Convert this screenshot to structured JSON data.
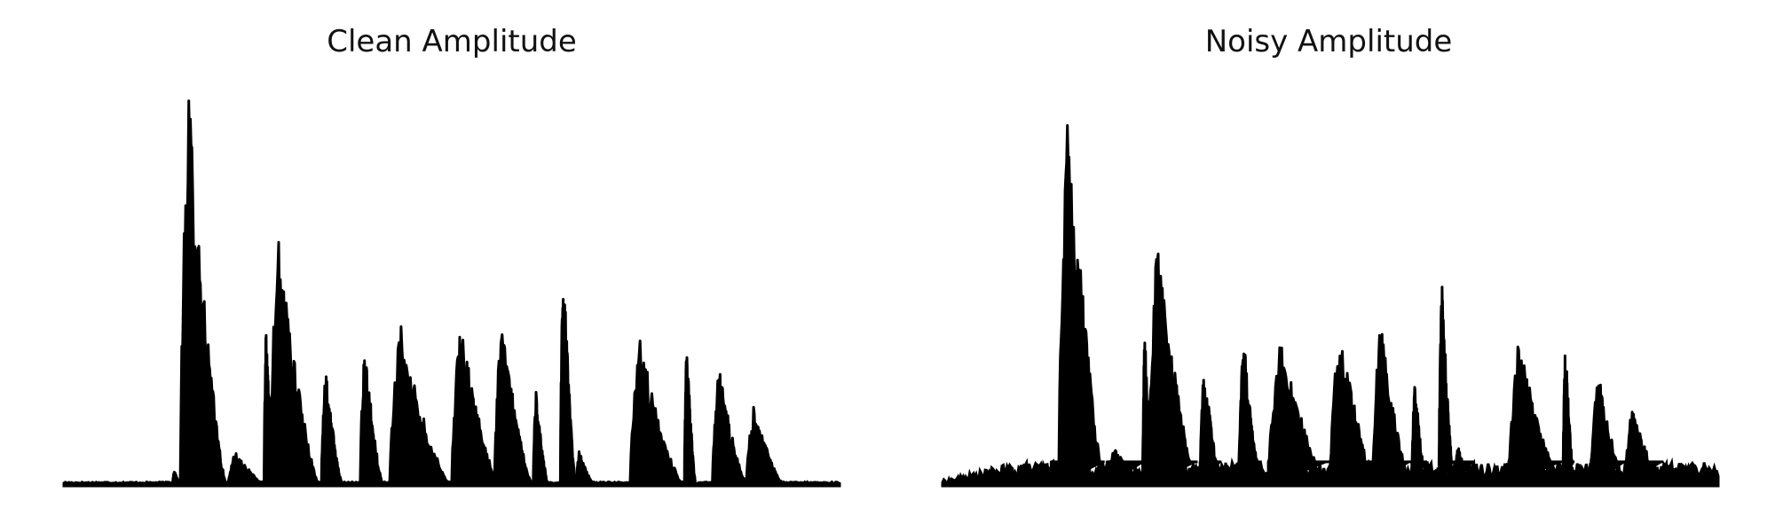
{
  "chart_data": [
    {
      "type": "area",
      "title": "Clean Amplitude",
      "xlabel": "",
      "ylabel": "",
      "grid": false,
      "axes_visible": false,
      "ylim": [
        0,
        1.0
      ],
      "color": "#000000",
      "baseline": 0.01,
      "segments": [
        {
          "start": 0.14,
          "end": 0.152,
          "peak": 0.04
        },
        {
          "start": 0.15,
          "end": 0.21,
          "peak": 1.0
        },
        {
          "start": 0.212,
          "end": 0.262,
          "peak": 0.09
        },
        {
          "start": 0.258,
          "end": 0.272,
          "peak": 0.4
        },
        {
          "start": 0.265,
          "end": 0.33,
          "peak": 0.63
        },
        {
          "start": 0.332,
          "end": 0.36,
          "peak": 0.31
        },
        {
          "start": 0.382,
          "end": 0.412,
          "peak": 0.36
        },
        {
          "start": 0.42,
          "end": 0.5,
          "peak": 0.41
        },
        {
          "start": 0.5,
          "end": 0.562,
          "peak": 0.41
        },
        {
          "start": 0.555,
          "end": 0.605,
          "peak": 0.42
        },
        {
          "start": 0.605,
          "end": 0.625,
          "peak": 0.24
        },
        {
          "start": 0.64,
          "end": 0.66,
          "peak": 0.6
        },
        {
          "start": 0.66,
          "end": 0.685,
          "peak": 0.09
        },
        {
          "start": 0.73,
          "end": 0.8,
          "peak": 0.37
        },
        {
          "start": 0.8,
          "end": 0.815,
          "peak": 0.37
        },
        {
          "start": 0.836,
          "end": 0.882,
          "peak": 0.3
        },
        {
          "start": 0.88,
          "end": 0.93,
          "peak": 0.2
        }
      ]
    },
    {
      "type": "area",
      "title": "Noisy Amplitude",
      "xlabel": "",
      "ylabel": "",
      "grid": false,
      "axes_visible": false,
      "ylim": [
        0,
        1.0
      ],
      "color": "#000000",
      "baseline": 0.03,
      "noise_floor": 0.06,
      "segments": [
        {
          "start": 0.14,
          "end": 0.152,
          "peak": 0.07
        },
        {
          "start": 0.15,
          "end": 0.21,
          "peak": 1.0
        },
        {
          "start": 0.212,
          "end": 0.262,
          "peak": 0.1
        },
        {
          "start": 0.258,
          "end": 0.272,
          "peak": 0.4
        },
        {
          "start": 0.265,
          "end": 0.33,
          "peak": 0.62
        },
        {
          "start": 0.332,
          "end": 0.36,
          "peak": 0.31
        },
        {
          "start": 0.382,
          "end": 0.412,
          "peak": 0.39
        },
        {
          "start": 0.42,
          "end": 0.5,
          "peak": 0.38
        },
        {
          "start": 0.5,
          "end": 0.562,
          "peak": 0.4
        },
        {
          "start": 0.555,
          "end": 0.605,
          "peak": 0.42
        },
        {
          "start": 0.605,
          "end": 0.625,
          "peak": 0.27
        },
        {
          "start": 0.64,
          "end": 0.66,
          "peak": 0.53
        },
        {
          "start": 0.66,
          "end": 0.685,
          "peak": 0.1
        },
        {
          "start": 0.73,
          "end": 0.8,
          "peak": 0.37
        },
        {
          "start": 0.8,
          "end": 0.815,
          "peak": 0.37
        },
        {
          "start": 0.836,
          "end": 0.882,
          "peak": 0.3
        },
        {
          "start": 0.88,
          "end": 0.93,
          "peak": 0.2
        }
      ]
    }
  ]
}
